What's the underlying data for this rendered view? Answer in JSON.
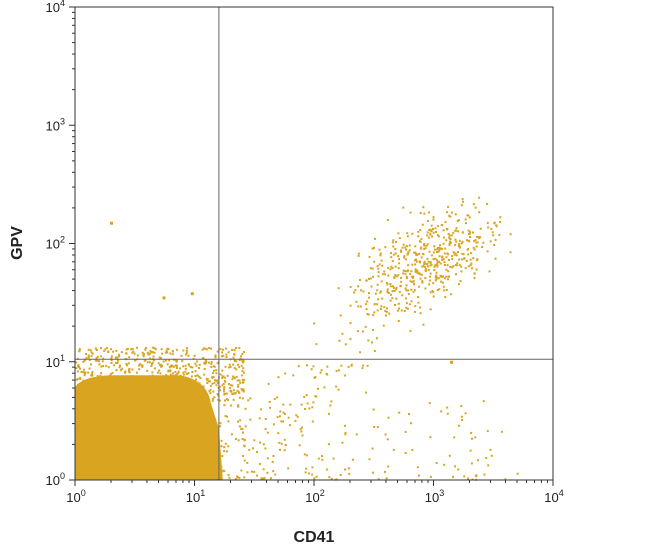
{
  "chart_data": {
    "type": "scatter",
    "plot_kind": "flow cytometry dot plot",
    "xlabel": "CD41",
    "ylabel": "GPV",
    "x_scale": "log",
    "y_scale": "log",
    "xlim": [
      1,
      10000
    ],
    "ylim": [
      1,
      10000
    ],
    "x_ticks": [
      {
        "value": 1,
        "base": "10",
        "exp": "0"
      },
      {
        "value": 10,
        "base": "10",
        "exp": "1"
      },
      {
        "value": 100,
        "base": "10",
        "exp": "2"
      },
      {
        "value": 1000,
        "base": "10",
        "exp": "3"
      },
      {
        "value": 10000,
        "base": "10",
        "exp": "4"
      }
    ],
    "y_ticks": [
      {
        "value": 1,
        "base": "10",
        "exp": "0"
      },
      {
        "value": 10,
        "base": "10",
        "exp": "1"
      },
      {
        "value": 100,
        "base": "10",
        "exp": "2"
      },
      {
        "value": 1000,
        "base": "10",
        "exp": "3"
      },
      {
        "value": 10000,
        "base": "10",
        "exp": "4"
      }
    ],
    "quadrant_gates": {
      "x": 16,
      "y": 10.5
    },
    "point_color": "#d9a520",
    "gate_color": "#666666",
    "grid": false,
    "legend": "none",
    "populations": [
      {
        "description": "dense population, lower-left quadrant",
        "x_range": [
          1,
          16
        ],
        "y_range": [
          1,
          8
        ],
        "center": [
          3.5,
          2.0
        ],
        "density": "high"
      },
      {
        "description": "CD41+ GPV+ population, upper-right quadrant",
        "x_range": [
          150,
          4500
        ],
        "y_range": [
          25,
          250
        ],
        "center": [
          900,
          75
        ],
        "density": "medium"
      },
      {
        "description": "sparse scatter between populations",
        "x_range": [
          16,
          5000
        ],
        "y_range": [
          1,
          60
        ],
        "density": "low"
      }
    ],
    "outliers": [
      {
        "x": 2.0,
        "y": 150
      },
      {
        "x": 5.5,
        "y": 35
      },
      {
        "x": 9.5,
        "y": 38
      },
      {
        "x": 1400,
        "y": 10
      }
    ]
  }
}
